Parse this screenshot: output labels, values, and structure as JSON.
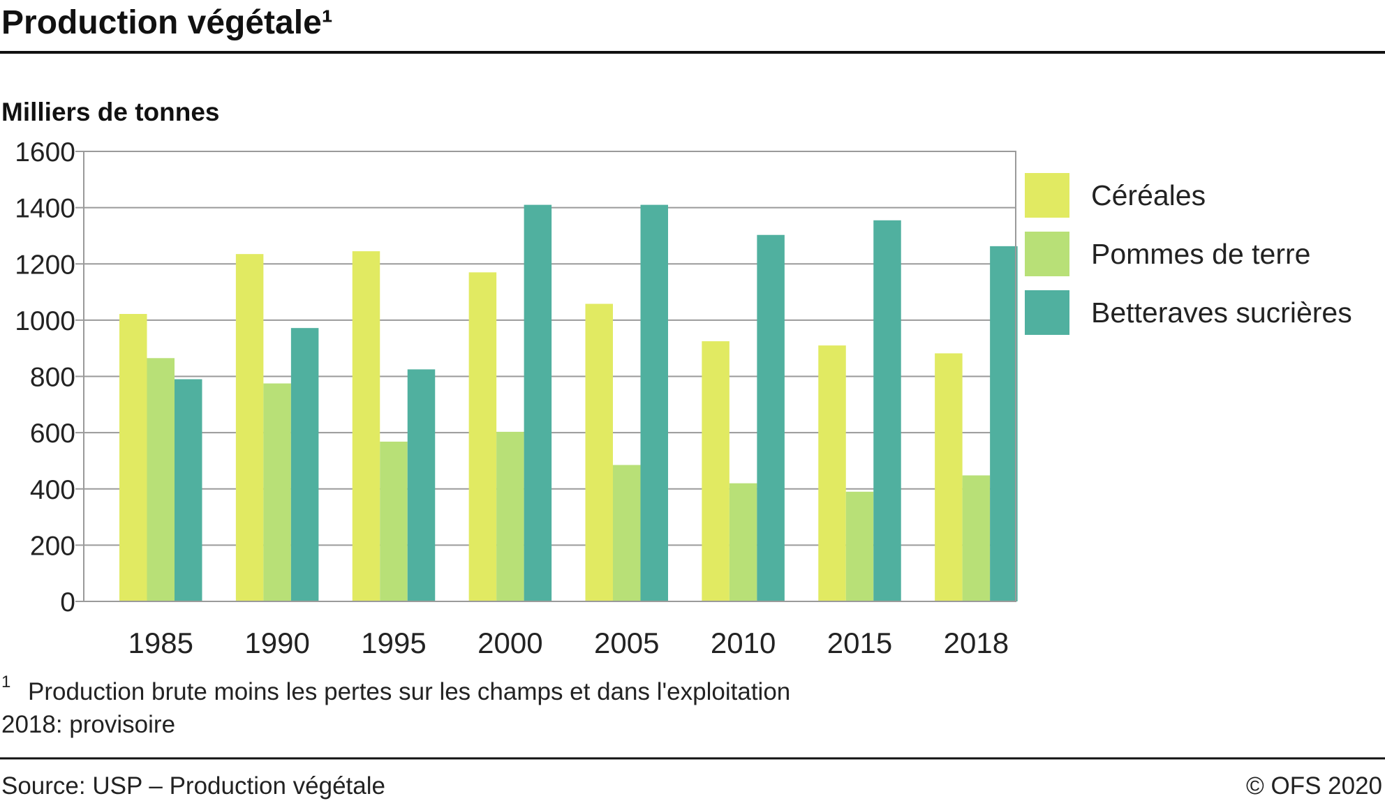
{
  "header": {
    "title": "Production végétale¹",
    "unit_label": "Milliers de tonnes"
  },
  "chart_data": {
    "type": "bar",
    "categories": [
      "1985",
      "1990",
      "1995",
      "2000",
      "2005",
      "2010",
      "2015",
      "2018"
    ],
    "series": [
      {
        "name": "Céréales",
        "color": "#e1ea62",
        "values": [
          1022,
          1235,
          1245,
          1170,
          1058,
          925,
          910,
          882
        ]
      },
      {
        "name": "Pommes de terre",
        "color": "#b8e077",
        "values": [
          865,
          775,
          568,
          603,
          485,
          420,
          390,
          448
        ]
      },
      {
        "name": "Betteraves sucrières",
        "color": "#50b09f",
        "values": [
          790,
          972,
          825,
          1410,
          1410,
          1303,
          1355,
          1263
        ]
      }
    ],
    "ylim": [
      0,
      1600
    ],
    "yticks": [
      0,
      200,
      400,
      600,
      800,
      1000,
      1200,
      1400,
      1600
    ],
    "ytick_labels": [
      "0",
      "200",
      "400",
      "600",
      "800",
      "1000",
      "1200",
      "1400",
      "1600"
    ],
    "grid": "horizontal",
    "legend_position": "right"
  },
  "notes": {
    "footnote_mark": "1",
    "footnote_text": "Production brute moins les pertes sur les champs et dans l'exploitation",
    "provisional": "2018: provisoire"
  },
  "footer": {
    "source": "Source: USP – Production végétale",
    "copyright": "© OFS 2020"
  },
  "colors": {
    "grid": "#9a9a9a",
    "rule": "#111111"
  }
}
